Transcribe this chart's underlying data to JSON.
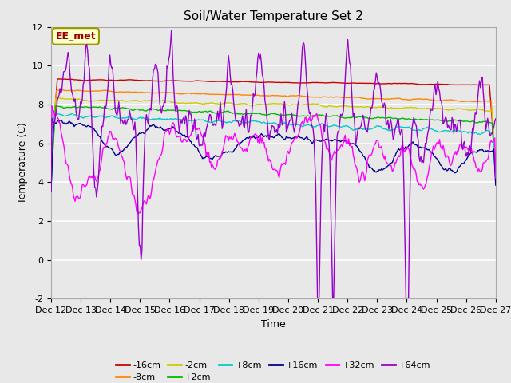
{
  "title": "Soil/Water Temperature Set 2",
  "xlabel": "Time",
  "ylabel": "Temperature (C)",
  "annotation": "EE_met",
  "ylim": [
    -2,
    12
  ],
  "yticks": [
    -2,
    0,
    2,
    4,
    6,
    8,
    10,
    12
  ],
  "xtick_labels": [
    "Dec 12",
    "Dec 13",
    "Dec 14",
    "Dec 15",
    "Dec 16",
    "Dec 17",
    "Dec 18",
    "Dec 19",
    "Dec 20",
    "Dec 21",
    "Dec 22",
    "Dec 23",
    "Dec 24",
    "Dec 25",
    "Dec 26",
    "Dec 27"
  ],
  "series": {
    "-16cm": {
      "color": "#cc0000"
    },
    "-8cm": {
      "color": "#ff8800"
    },
    "-2cm": {
      "color": "#cccc00"
    },
    "+2cm": {
      "color": "#00bb00"
    },
    "+8cm": {
      "color": "#00cccc"
    },
    "+16cm": {
      "color": "#000088"
    },
    "+32cm": {
      "color": "#ff00ff"
    },
    "+64cm": {
      "color": "#9900cc"
    }
  },
  "plot_bg_color": "#e8e8e8",
  "grid_color": "#ffffff",
  "title_fontsize": 11,
  "label_fontsize": 9,
  "tick_fontsize": 8
}
